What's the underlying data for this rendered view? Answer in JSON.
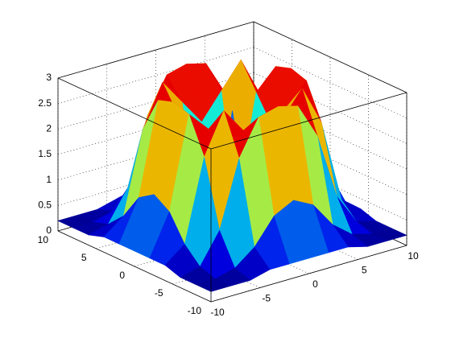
{
  "chart_data": {
    "type": "surface",
    "x": [
      -10,
      -8,
      -6,
      -4,
      -2,
      0,
      2,
      4,
      6,
      8,
      10
    ],
    "y": [
      -10,
      -8,
      -6,
      -4,
      -2,
      0,
      2,
      4,
      6,
      8,
      10
    ],
    "z": [
      [
        0.2,
        0.2,
        0.2,
        0.3,
        0.3,
        0.3,
        0.3,
        0.3,
        0.2,
        0.2,
        0.2
      ],
      [
        0.2,
        0.2,
        0.3,
        0.6,
        1.1,
        1.3,
        1.1,
        0.6,
        0.3,
        0.2,
        0.2
      ],
      [
        0.2,
        0.3,
        0.9,
        2.2,
        2.9,
        3.0,
        2.9,
        2.2,
        0.9,
        0.3,
        0.2
      ],
      [
        0.3,
        0.6,
        2.2,
        3.0,
        2.5,
        2.0,
        2.5,
        3.0,
        2.2,
        0.6,
        0.3
      ],
      [
        0.3,
        1.1,
        2.9,
        2.5,
        0.4,
        0.1,
        0.4,
        2.5,
        2.9,
        1.1,
        0.3
      ],
      [
        0.3,
        1.3,
        3.0,
        2.0,
        0.1,
        2.5,
        0.1,
        2.0,
        3.0,
        1.3,
        0.3
      ],
      [
        0.3,
        1.1,
        2.9,
        2.5,
        0.4,
        0.1,
        0.4,
        2.5,
        2.9,
        1.1,
        0.3
      ],
      [
        0.3,
        0.6,
        2.2,
        3.0,
        2.5,
        2.0,
        2.5,
        3.0,
        2.2,
        0.6,
        0.3
      ],
      [
        0.2,
        0.3,
        0.9,
        2.2,
        2.9,
        3.0,
        2.9,
        2.2,
        0.9,
        0.3,
        0.2
      ],
      [
        0.2,
        0.2,
        0.3,
        0.6,
        1.1,
        1.3,
        1.1,
        0.6,
        0.3,
        0.2,
        0.2
      ],
      [
        0.2,
        0.2,
        0.2,
        0.3,
        0.3,
        0.3,
        0.3,
        0.3,
        0.2,
        0.2,
        0.2
      ]
    ],
    "xlim": [
      -10,
      10
    ],
    "ylim": [
      -10,
      10
    ],
    "zlim": [
      0,
      3
    ],
    "xticks": [
      -10,
      -5,
      0,
      5,
      10
    ],
    "yticks": [
      -10,
      -5,
      0,
      5,
      10
    ],
    "zticks": [
      0,
      0.5,
      1,
      1.5,
      2,
      2.5,
      3
    ],
    "grid": true,
    "colormap": "jet"
  }
}
